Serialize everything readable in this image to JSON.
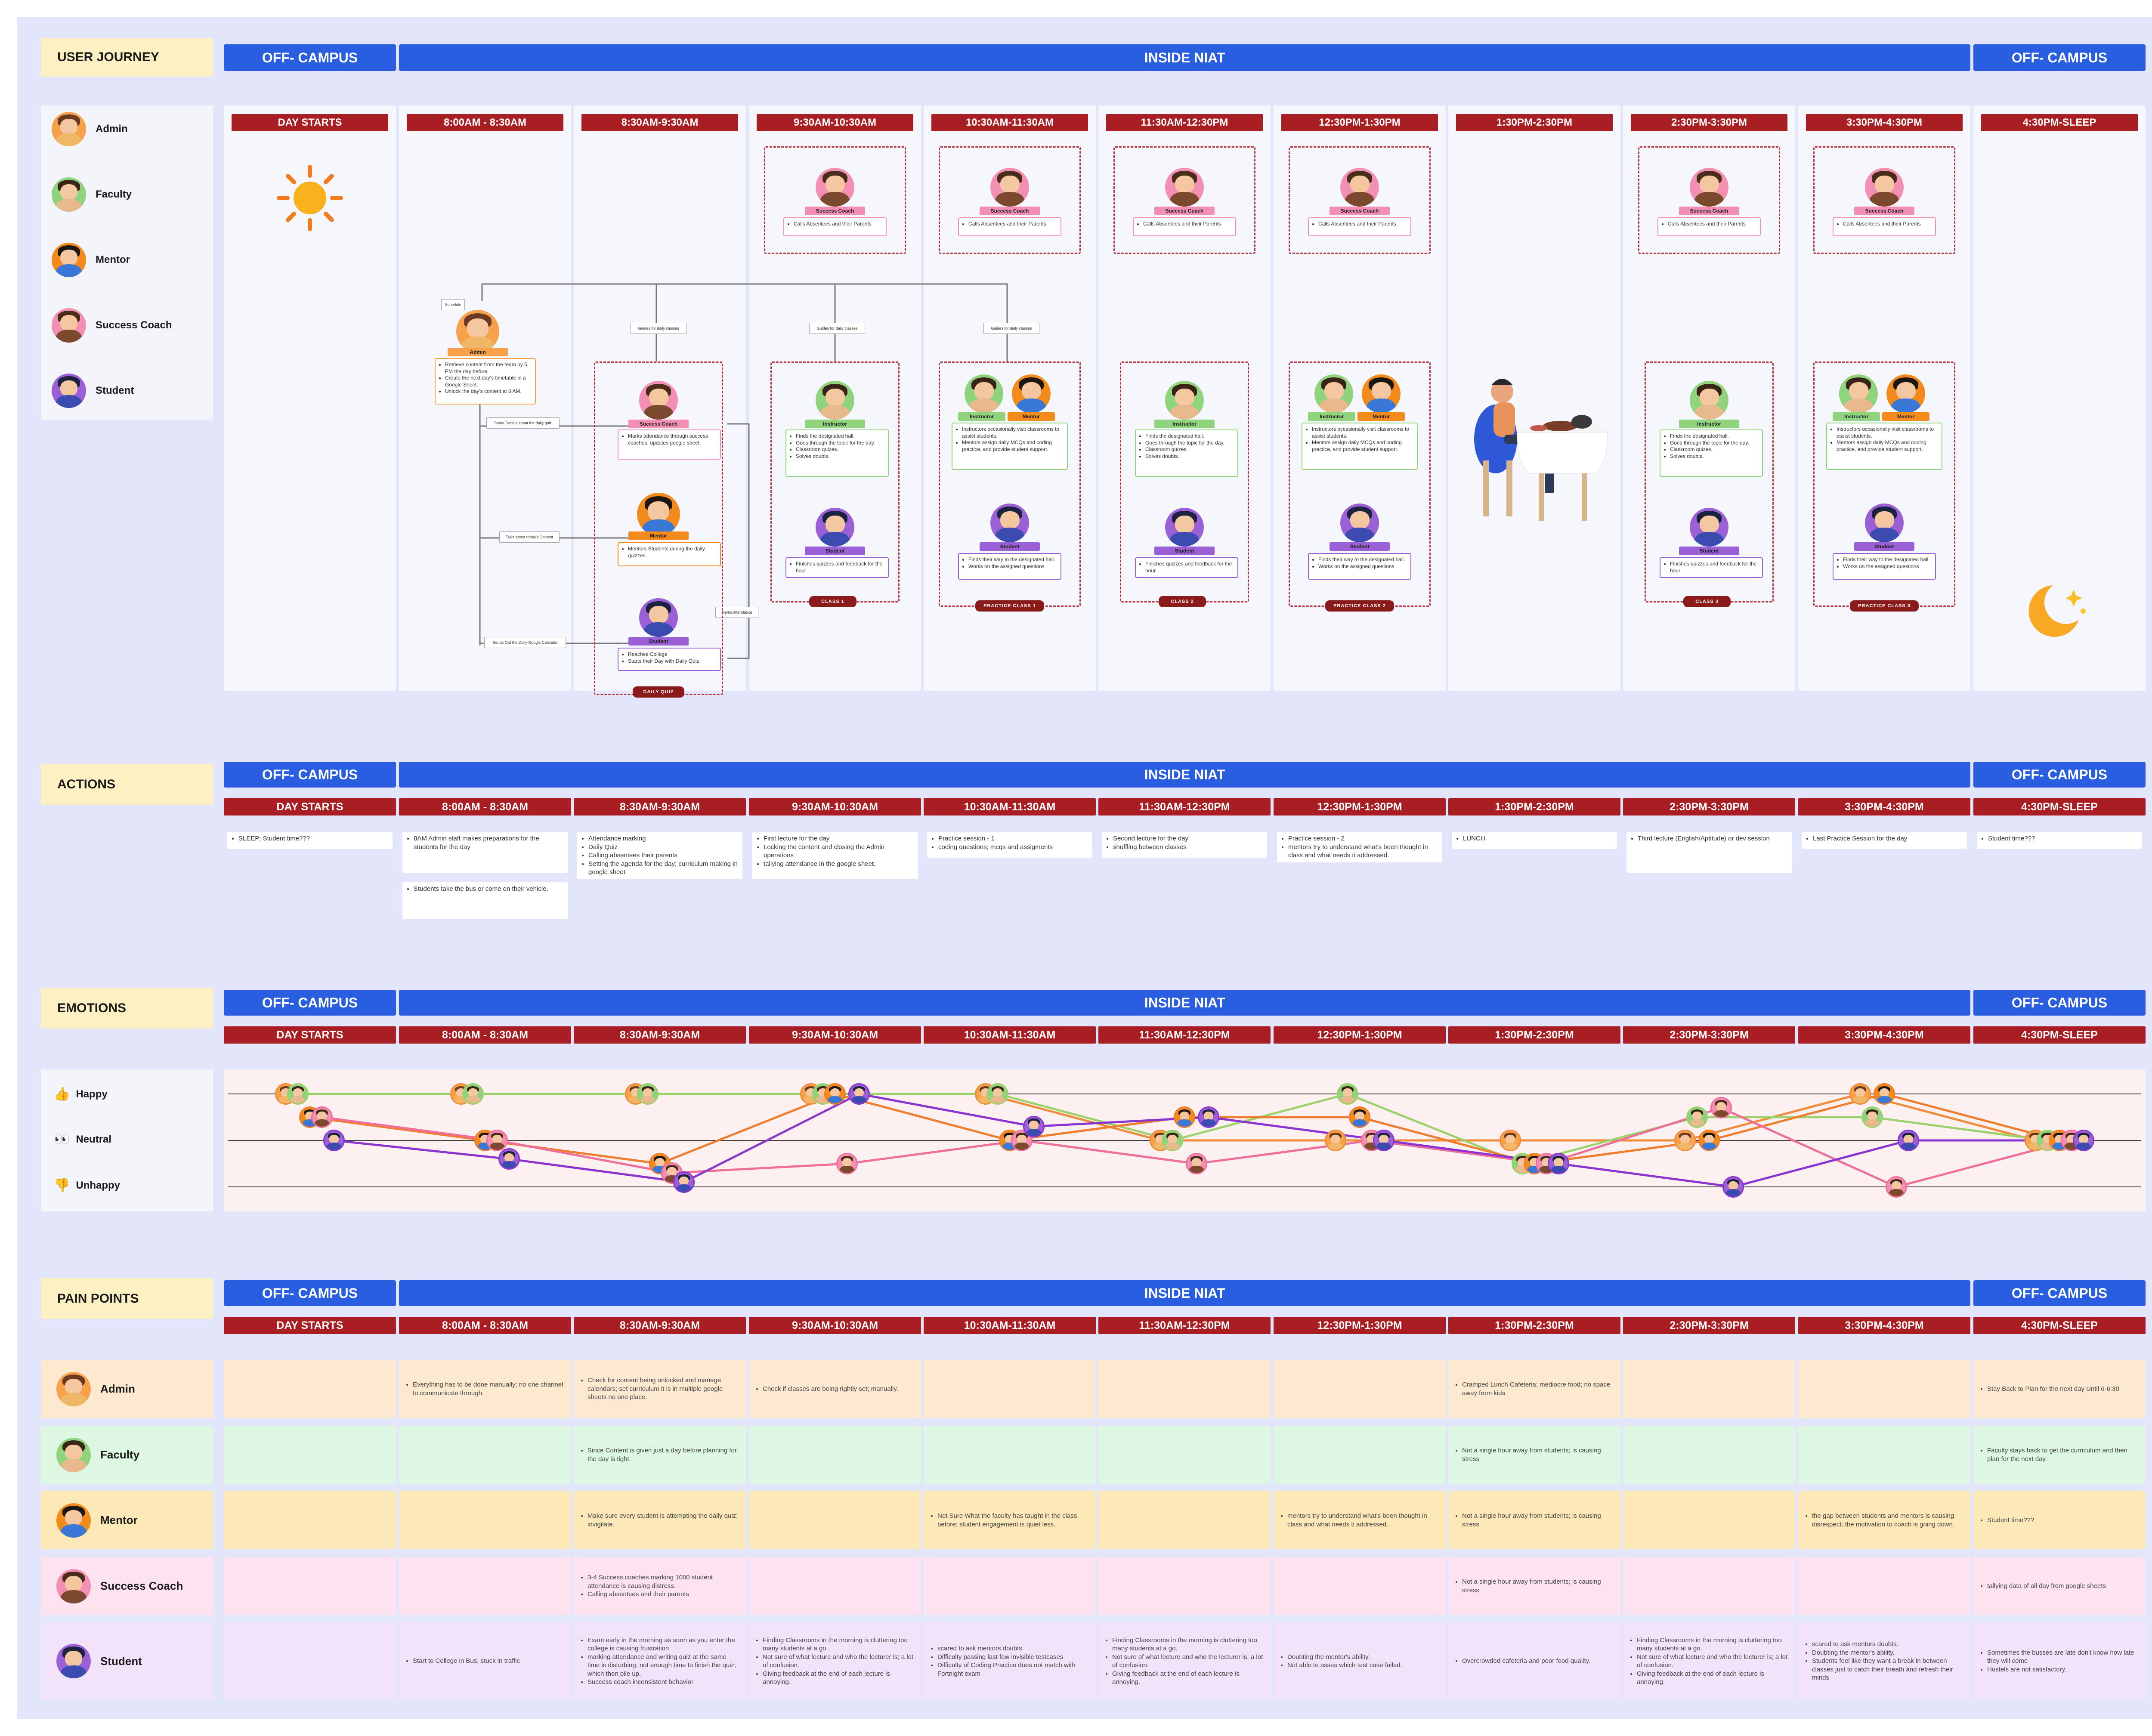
{
  "colors": {
    "admin": "#f7a14a",
    "faculty": "#8fd47c",
    "mentor": "#f28a1c",
    "coach": "#f48fb4",
    "student": "#9b5fd6",
    "zone": "#2a5ee0",
    "time": "#a81e22"
  },
  "sections": {
    "journey": "USER JOURNEY",
    "actions": "ACTIONS",
    "emotions": "EMOTIONS",
    "pain": "PAIN POINTS"
  },
  "zones": {
    "off": "OFF- CAMPUS",
    "inside": "INSIDE NIAT"
  },
  "times": [
    "DAY STARTS",
    "8:00AM - 8:30AM",
    "8:30AM-9:30AM",
    "9:30AM-10:30AM",
    "10:30AM-11:30AM",
    "11:30AM-12:30PM",
    "12:30PM-1:30PM",
    "1:30PM-2:30PM",
    "2:30PM-3:30PM",
    "3:30PM-4:30PM",
    "4:30PM-SLEEP"
  ],
  "roles": [
    "Admin",
    "Faculty",
    "Mentor",
    "Success Coach",
    "Student"
  ],
  "journey": {
    "coach_card": "Calls Absentees and their Parents",
    "pill_coach": "Success Coach",
    "pill_instructor": "Instructor",
    "pill_mentor": "Mentor",
    "pill_student": "Student",
    "pill_admin": "Admin",
    "admin_items": [
      "Retrieve content from the team by 5 PM the day before.",
      "Create the next day's timetable in a Google Sheet.",
      "Unlock the day's content at 8 AM."
    ],
    "coach_items": [
      "Marks attendance through success coaches; updates google sheet."
    ],
    "mentor_items": [
      "Mentors Students during the daily quizzes."
    ],
    "student_early": [
      "Reaches College",
      "Starts their Day with Daily Quiz"
    ],
    "faculty_items": [
      "Finds the designated hall.",
      "Goes through the topic for the day.",
      "Classroom quizes.",
      "Solves doubts."
    ],
    "instr_practice": [
      "Instructors occasionally visit classrooms to assist students.",
      "Mentors assign daily MCQs and coding practice, and provide student support."
    ],
    "student_class": [
      "Finishes quizzes and feedback for the hour"
    ],
    "student_practice": [
      "Finds their way to the designated hall.",
      "Works on the assigned questions"
    ],
    "notes": {
      "schedule": "Schedule",
      "guides": "Guides for daily classes",
      "share": "Share Details about the daily quiz",
      "talks": "Talks about today's Content",
      "sends": "Sends Out the Daily Google Calendar",
      "marks": "Marks attendance"
    },
    "tags": {
      "quiz": "DAILY QUIZ",
      "class1": "CLASS 1",
      "practice1": "PRACTICE CLASS 1",
      "class2": "CLASS 2",
      "practice2": "PRACTICE CLASS 2",
      "class3": "CLASS 3",
      "practice3": "PRACTICE CLASS 3"
    }
  },
  "actions": [
    [
      "SLEEP; Student time???"
    ],
    [
      "8AM Admin staff makes preparations for the students for the day"
    ],
    [
      "Attendance marking",
      "Daily Quiz",
      "Calling absentees their parents",
      "Setting the agenda for the day; curriculum making in google sheet"
    ],
    [
      "First lecture for the day",
      "Locking the content and closing the Admin operations",
      "tallying attendance in the google sheet."
    ],
    [
      "Practice session - 1",
      "coding questions; mcqs and assigments"
    ],
    [
      "Second lecture for the day",
      "shuffling between classes"
    ],
    [
      "Practice session - 2",
      "mentors try to understand what's been thought in class and what needs ti addressed."
    ],
    [
      "LUNCH"
    ],
    [
      "Third lecture (English/Aptitude) or dev session"
    ],
    [
      "Last Practice Session for the day"
    ],
    [
      "Student time???"
    ]
  ],
  "actions_extra": [
    "Students take the bus or come on their vehicle."
  ],
  "emotions": {
    "happy": "Happy",
    "neutral": "Neutral",
    "unhappy": "Unhappy"
  },
  "emotion_series": [
    {
      "role": "Admin",
      "values": [
        1,
        1,
        1,
        1,
        1,
        0,
        0,
        0,
        0,
        1,
        0
      ]
    },
    {
      "role": "Faculty",
      "values": [
        1,
        1,
        1,
        1,
        1,
        0,
        1,
        -0.5,
        0.5,
        0.5,
        0
      ]
    },
    {
      "role": "Mentor",
      "values": [
        0.5,
        0,
        -0.5,
        1,
        0,
        0.5,
        0.5,
        -0.5,
        0,
        1,
        0
      ]
    },
    {
      "role": "Success Coach",
      "values": [
        0.5,
        0,
        -0.7,
        -0.5,
        0,
        -0.5,
        0,
        -0.5,
        0.7,
        -1,
        0
      ]
    },
    {
      "role": "Student",
      "values": [
        0,
        -0.4,
        -0.9,
        1,
        0.3,
        0.5,
        0,
        -0.5,
        -1,
        0,
        0
      ]
    }
  ],
  "pain": {
    "Admin": [
      [],
      [
        "Everything has to be done manually; no one channel to communicate through."
      ],
      [
        "Check for content being unlocked and manage calendars; set curriculum it is in multiple google sheets no one place."
      ],
      [
        "Check if classes are being rightly set; manually."
      ],
      [],
      [],
      [],
      [
        "Cramped Lunch Cafeteria; mediocre food; no space away from kids"
      ],
      [],
      [],
      [
        "Stay Back to Plan for the next day Until 6-6:30"
      ]
    ],
    "Faculty": [
      [],
      [],
      [
        "Since Content is given just a day before planning for the day is tight."
      ],
      [],
      [],
      [],
      [],
      [
        "Not a single hour away from students; is causing stress"
      ],
      [],
      [],
      [
        "Faculty stays back to get the curriculum and then plan for the next day."
      ]
    ],
    "Mentor": [
      [],
      [],
      [
        "Make sure every student is attempting the daily quiz; invigilate."
      ],
      [],
      [
        "Not Sure What the faculty has taught in the class before; student engagement is quiet less."
      ],
      [],
      [
        "mentors try to understand what's been thought in class and what needs ti addressed."
      ],
      [
        "Not a single hour away from students; is causing stress"
      ],
      [],
      [
        "the gap between students and mentors is causing disrespect; the motivation to coach is going down."
      ],
      [
        "Student time???"
      ]
    ],
    "Success Coach": [
      [],
      [],
      [
        "3-4 Success coaches marking 1000 student attendance is causing distress.",
        "Calling absentees and their parents"
      ],
      [],
      [],
      [],
      [],
      [
        "Not a single hour away from students; is causing stress"
      ],
      [],
      [],
      [
        "tallying data of all day from google sheets"
      ]
    ],
    "Student": [
      [],
      [
        "Start to College in Bus; stuck in traffic"
      ],
      [
        "Exam early in the morning as soon as you enter the college is causing frustration",
        "marking attendance and writing quiz at the same time is disturbing; not enough time to finish the quiz; which then pile up.",
        "Success coach inconsistent behavior"
      ],
      [
        "Finding Classrooms in the morning is cluttering too many students at a go.",
        "Not sure of what lecture and who the lecturer is; a lot of confusion.",
        "Giving feedback at the end of each lecture is annoying."
      ],
      [
        "scared to ask mentors doubts.",
        "Difficulty passing last few invisible testcases",
        "Difficulty of Coding Practice does not match with Fortnight exam"
      ],
      [
        "Finding Classrooms in the morning is cluttering too many students at a go.",
        "Not sure of what lecture and who the lecturer is; a lot of confusion.",
        "Giving feedback at the end of each lecture is annoying."
      ],
      [
        "Doubting the mentor's ability.",
        "Not able to asses which test case failed."
      ],
      [
        "Overcrowded cafeteria and poor food quality."
      ],
      [
        "Finding Classrooms in the morning is cluttering too many students at a go.",
        "Not sure of what lecture and who the lecturer is; a lot of confusion.",
        "Giving feedback at the end of each lecture is annoying."
      ],
      [
        "scared to ask mentors doubts.",
        "Doubting the mentor's ability.",
        "Students feel like they want a break in between classes just to catch their breath and refresh their minds"
      ],
      [
        "Sometimes the busses are late don't know how late they will come",
        "Hostels are not satisfactory."
      ]
    ]
  }
}
